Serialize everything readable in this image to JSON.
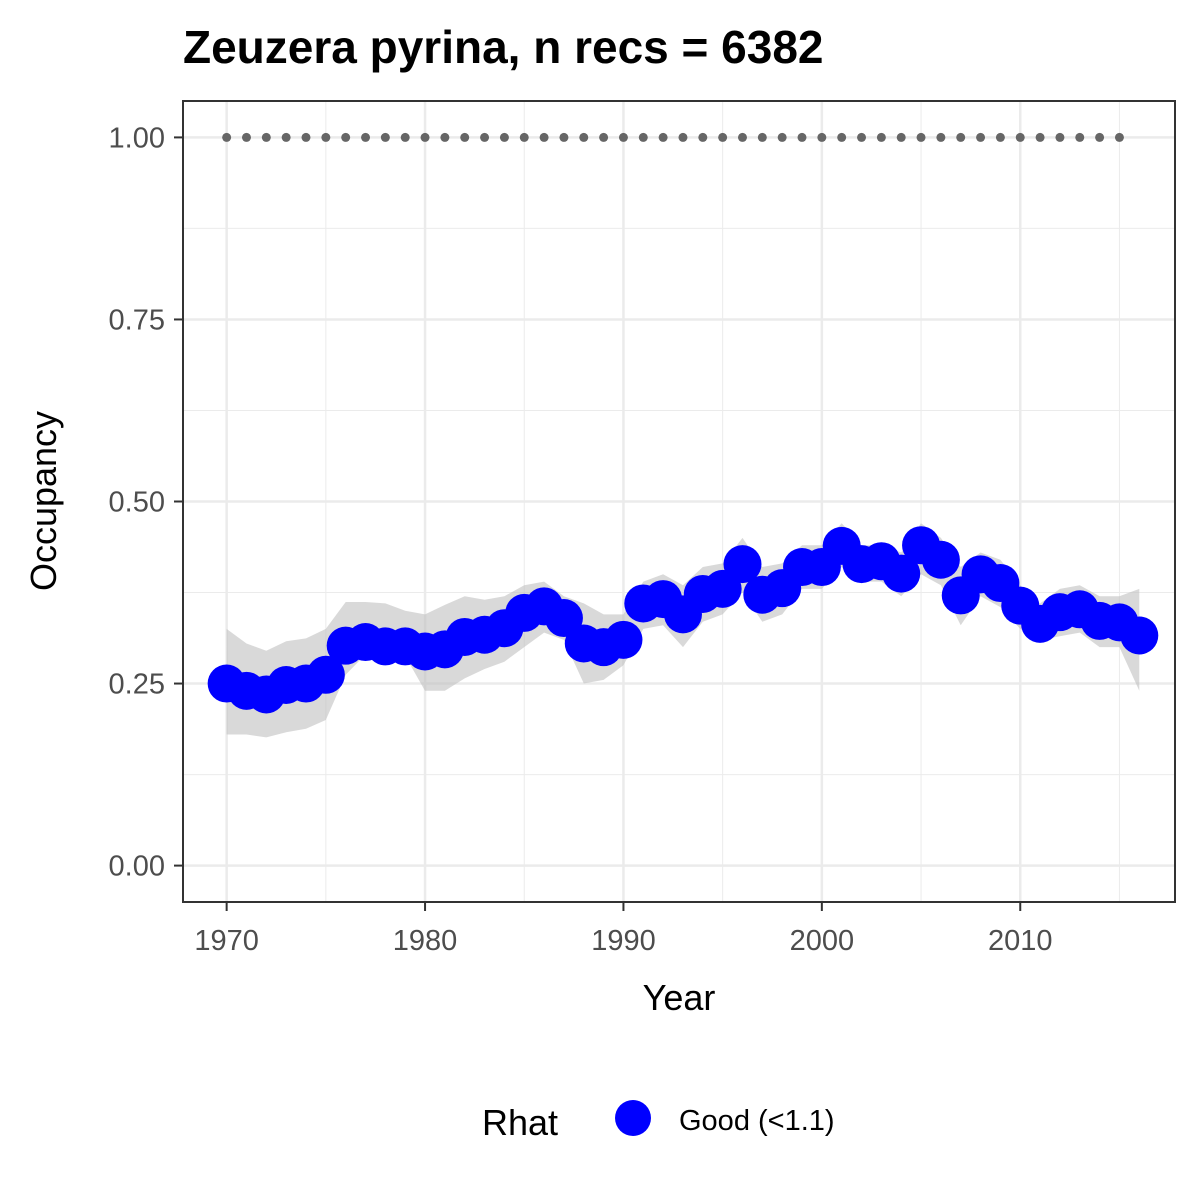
{
  "chart_data": {
    "type": "line",
    "title": "Zeuzera pyrina, n recs = 6382",
    "xlabel": "Year",
    "ylabel": "Occupancy",
    "xlim": [
      1967.8,
      2017.8
    ],
    "ylim": [
      -0.05,
      1.05
    ],
    "x_ticks": [
      1970,
      1980,
      1990,
      2000,
      2010
    ],
    "x_tick_labels": [
      "1970",
      "1980",
      "1990",
      "2000",
      "2010"
    ],
    "y_ticks": [
      0.0,
      0.25,
      0.5,
      0.75,
      1.0
    ],
    "y_tick_labels": [
      "0.00",
      "0.25",
      "0.50",
      "0.75",
      "1.00"
    ],
    "grid": true,
    "legend": {
      "title": "Rhat",
      "position": "bottom",
      "entries": [
        {
          "label": "Good (<1.1)",
          "color": "#0000ff"
        }
      ]
    },
    "colors": {
      "points": "#0000ff",
      "ribbon": "#bfbfbf",
      "reference": "#666666",
      "grid": "#ebebeb",
      "panel_border": "#333333"
    },
    "x": [
      1970,
      1971,
      1972,
      1973,
      1974,
      1975,
      1976,
      1977,
      1978,
      1979,
      1980,
      1981,
      1982,
      1983,
      1984,
      1985,
      1986,
      1987,
      1988,
      1989,
      1990,
      1991,
      1992,
      1993,
      1994,
      1995,
      1996,
      1997,
      1998,
      1999,
      2000,
      2001,
      2002,
      2003,
      2004,
      2005,
      2006,
      2007,
      2008,
      2009,
      2010,
      2011,
      2012,
      2013,
      2014,
      2015,
      2016
    ],
    "series": [
      {
        "name": "Good (<1.1)",
        "values": [
          0.25,
          0.24,
          0.235,
          0.248,
          0.25,
          0.262,
          0.302,
          0.307,
          0.301,
          0.301,
          0.294,
          0.297,
          0.314,
          0.317,
          0.326,
          0.347,
          0.356,
          0.34,
          0.305,
          0.3,
          0.31,
          0.36,
          0.366,
          0.345,
          0.373,
          0.38,
          0.414,
          0.372,
          0.381,
          0.41,
          0.41,
          0.439,
          0.414,
          0.418,
          0.401,
          0.44,
          0.42,
          0.371,
          0.4,
          0.388,
          0.357,
          0.332,
          0.348,
          0.352,
          0.336,
          0.334,
          0.316
        ],
        "lower": [
          0.18,
          0.18,
          0.176,
          0.183,
          0.188,
          0.2,
          0.262,
          0.29,
          0.288,
          0.288,
          0.24,
          0.24,
          0.257,
          0.27,
          0.28,
          0.3,
          0.32,
          0.31,
          0.25,
          0.255,
          0.275,
          0.325,
          0.33,
          0.3,
          0.335,
          0.345,
          0.375,
          0.335,
          0.345,
          0.38,
          0.38,
          0.41,
          0.39,
          0.39,
          0.37,
          0.4,
          0.385,
          0.33,
          0.37,
          0.355,
          0.325,
          0.31,
          0.315,
          0.32,
          0.3,
          0.3,
          0.24
        ],
        "upper": [
          0.325,
          0.305,
          0.295,
          0.308,
          0.312,
          0.325,
          0.362,
          0.362,
          0.36,
          0.35,
          0.345,
          0.358,
          0.37,
          0.365,
          0.37,
          0.385,
          0.39,
          0.37,
          0.36,
          0.345,
          0.345,
          0.39,
          0.4,
          0.385,
          0.41,
          0.415,
          0.45,
          0.41,
          0.415,
          0.44,
          0.44,
          0.47,
          0.44,
          0.44,
          0.43,
          0.47,
          0.45,
          0.41,
          0.43,
          0.42,
          0.385,
          0.36,
          0.38,
          0.385,
          0.37,
          0.37,
          0.38
        ]
      },
      {
        "name": "",
        "style": "dotted",
        "x_range": [
          1970,
          2015
        ],
        "value": 1.0
      }
    ]
  }
}
